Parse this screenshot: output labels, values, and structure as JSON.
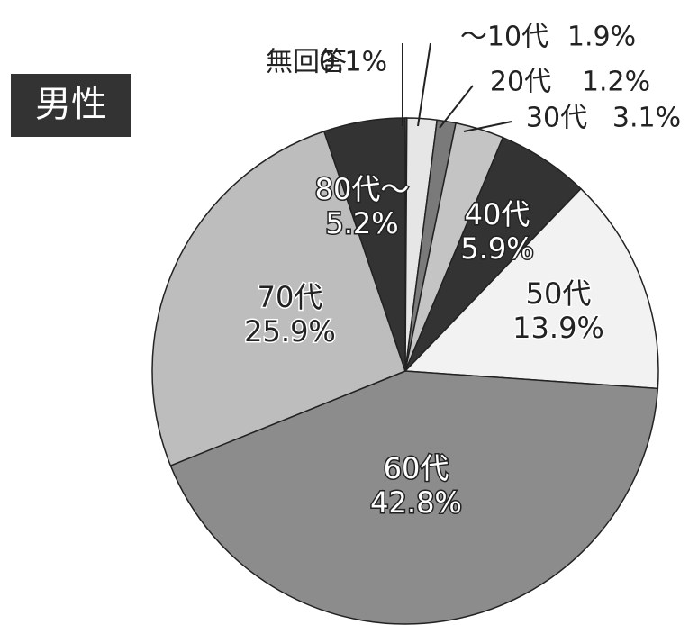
{
  "chart_data": {
    "type": "pie",
    "title": "男性",
    "categories": [
      "無回答",
      "～10代",
      "20代",
      "30代",
      "40代",
      "50代",
      "60代",
      "70代",
      "80代～"
    ],
    "values": [
      0.1,
      1.9,
      1.2,
      3.1,
      5.9,
      13.9,
      42.8,
      25.9,
      5.2
    ],
    "value_labels": [
      "0.1%",
      "1.9%",
      "1.2%",
      "3.1%",
      "5.9%",
      "13.9%",
      "42.8%",
      "25.9%",
      "5.2%"
    ],
    "colors": [
      "#ffffff",
      "#e6e6e6",
      "#7a7a7a",
      "#c4c4c4",
      "#333333",
      "#f2f2f2",
      "#8c8c8c",
      "#bdbdbd",
      "#333333"
    ]
  }
}
